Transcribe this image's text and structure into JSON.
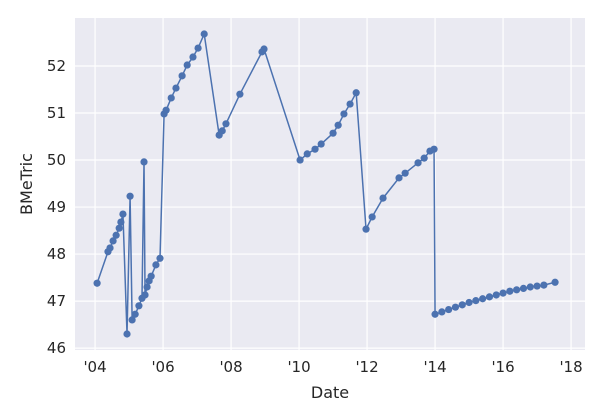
{
  "chart_data": {
    "type": "line",
    "title": "",
    "xlabel": "Date",
    "ylabel": "BMeTric",
    "xlim": [
      2003.41,
      2018.41
    ],
    "ylim": [
      45.96,
      53.02
    ],
    "grid": true,
    "x_ticks": [
      2004,
      2006,
      2008,
      2010,
      2012,
      2014,
      2016,
      2018
    ],
    "x_tick_labels": [
      "'04",
      "'06",
      "'08",
      "'10",
      "'12",
      "'14",
      "'16",
      "'18"
    ],
    "y_ticks": [
      46,
      47,
      48,
      49,
      50,
      51,
      52
    ],
    "y_tick_labels": [
      "46",
      "47",
      "48",
      "49",
      "50",
      "51",
      "52"
    ],
    "colors": {
      "background": "#EAEAF2",
      "grid": "#FFFFFF",
      "line": "#4C72B0"
    },
    "series": [
      {
        "x": [
          2004.06,
          2004.38,
          2004.44,
          2004.53,
          2004.62,
          2004.71,
          2004.76,
          2004.82,
          2004.94,
          2005.03,
          2005.09,
          2005.18,
          2005.29,
          2005.38,
          2005.44,
          2005.47,
          2005.53,
          2005.59,
          2005.65,
          2005.79,
          2005.91,
          2006.03,
          2006.09,
          2006.24,
          2006.38,
          2006.56,
          2006.71,
          2006.88,
          2007.03,
          2007.21,
          2007.65,
          2007.74,
          2007.85,
          2008.26,
          2008.91,
          2008.97,
          2010.03,
          2010.24,
          2010.47,
          2010.65,
          2011.0,
          2011.15,
          2011.32,
          2011.5,
          2011.68,
          2011.97,
          2012.15,
          2012.47,
          2012.94,
          2013.12,
          2013.5,
          2013.68,
          2013.85,
          2013.97,
          2014.0,
          2014.2,
          2014.4,
          2014.6,
          2014.8,
          2015.0,
          2015.2,
          2015.4,
          2015.6,
          2015.8,
          2016.0,
          2016.2,
          2016.4,
          2016.6,
          2016.8,
          2017.0,
          2017.2,
          2017.53
        ],
        "y": [
          47.38,
          48.05,
          48.13,
          48.28,
          48.4,
          48.55,
          48.68,
          48.85,
          46.3,
          49.23,
          46.6,
          46.72,
          46.9,
          47.06,
          49.96,
          47.13,
          47.3,
          47.43,
          47.53,
          47.77,
          47.91,
          50.98,
          51.06,
          51.32,
          51.53,
          51.79,
          52.02,
          52.19,
          52.38,
          52.68,
          50.53,
          50.62,
          50.77,
          51.4,
          52.3,
          52.36,
          50.0,
          50.13,
          50.23,
          50.34,
          50.57,
          50.74,
          50.98,
          51.19,
          51.43,
          48.53,
          48.79,
          49.19,
          49.62,
          49.72,
          49.94,
          50.04,
          50.19,
          50.23,
          46.72,
          46.77,
          46.82,
          46.87,
          46.92,
          46.97,
          47.01,
          47.05,
          47.09,
          47.13,
          47.17,
          47.21,
          47.24,
          47.27,
          47.3,
          47.32,
          47.34,
          47.4
        ]
      }
    ]
  }
}
